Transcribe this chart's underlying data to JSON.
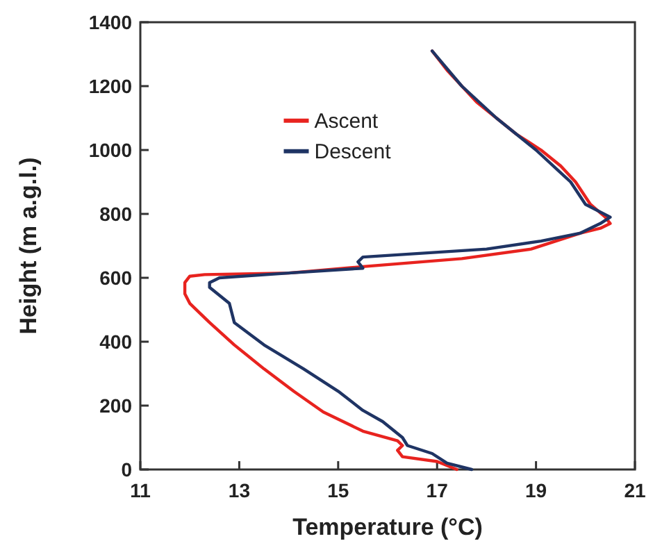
{
  "chart_data": {
    "type": "line",
    "xlabel": "Temperature (°C)",
    "ylabel": "Height (m a.g.l.)",
    "xlim": [
      11,
      21
    ],
    "xticks": [
      11,
      13,
      15,
      17,
      19,
      21
    ],
    "ylim": [
      0,
      1400
    ],
    "yticks": [
      0,
      200,
      400,
      600,
      800,
      1000,
      1200,
      1400
    ],
    "legend": "top left",
    "grid": false,
    "marker": "none",
    "line_style": "solid",
    "series": [
      {
        "name": "Ascent",
        "color": "#e8231f",
        "x": [
          17.4,
          17.0,
          16.3,
          16.2,
          16.3,
          16.2,
          15.5,
          14.7,
          14.1,
          13.5,
          12.9,
          12.4,
          12.0,
          11.9,
          11.9,
          12.0,
          12.3,
          14.0,
          15.5,
          17.5,
          18.9,
          19.9,
          20.3,
          20.5,
          20.4,
          20.1,
          19.8,
          19.5,
          19.1,
          18.6,
          18.2,
          17.8,
          17.5,
          17.2,
          16.9
        ],
        "values": [
          0,
          25,
          40,
          60,
          75,
          90,
          120,
          180,
          245,
          315,
          390,
          460,
          520,
          550,
          585,
          605,
          610,
          615,
          635,
          660,
          690,
          740,
          755,
          770,
          790,
          830,
          900,
          950,
          1000,
          1050,
          1100,
          1150,
          1200,
          1250,
          1310
        ]
      },
      {
        "name": "Descent",
        "color": "#1f3464",
        "x": [
          17.7,
          17.2,
          16.9,
          16.4,
          16.3,
          15.9,
          15.5,
          15.0,
          14.3,
          13.5,
          12.9,
          12.8,
          12.4,
          12.4,
          12.6,
          14.0,
          15.5,
          15.4,
          15.5,
          18.0,
          19.1,
          19.9,
          20.3,
          20.5,
          20.0,
          19.7,
          19.0,
          18.2,
          17.5,
          16.9
        ],
        "values": [
          0,
          20,
          50,
          75,
          100,
          150,
          185,
          245,
          315,
          390,
          460,
          520,
          570,
          585,
          600,
          615,
          630,
          650,
          665,
          690,
          715,
          740,
          770,
          790,
          830,
          900,
          1000,
          1100,
          1200,
          1310
        ]
      }
    ]
  }
}
